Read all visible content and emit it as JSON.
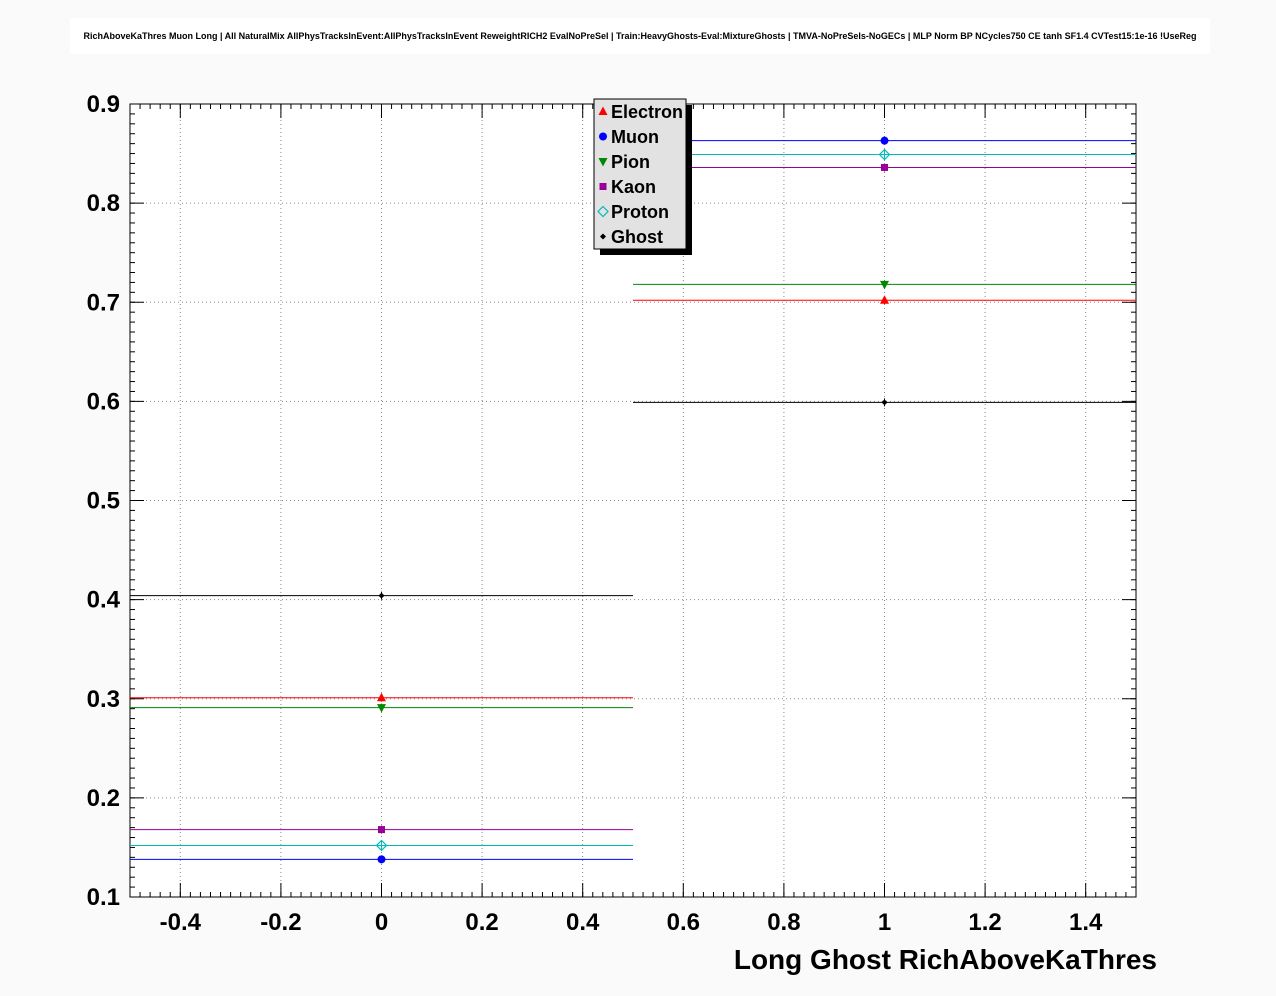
{
  "chart_data": {
    "type": "line",
    "title": "RichAboveKaThres Muon Long | All NaturalMix AllPhysTracksInEvent:AllPhysTracksInEvent ReweightRICH2 EvalNoPreSel | Train:HeavyGhosts-Eval:MixtureGhosts | TMVA-NoPreSels-NoGECs | MLP Norm BP NCycles750 CE tanh SF1.4 CVTest15:1e-16 !UseReg",
    "xlabel": "Long Ghost RichAboveKaThres",
    "ylabel": "",
    "xlim": [
      -0.5,
      1.5
    ],
    "ylim": [
      0.1,
      0.9
    ],
    "xticks": [
      -0.4,
      -0.2,
      0,
      0.2,
      0.4,
      0.6,
      0.8,
      1,
      1.2,
      1.4
    ],
    "xtick_labels": [
      "-0.4",
      "-0.2",
      "0",
      "0.2",
      "0.4",
      "0.6",
      "0.8",
      "1",
      "1.2",
      "1.4"
    ],
    "yticks": [
      0.1,
      0.2,
      0.3,
      0.4,
      0.5,
      0.6,
      0.7,
      0.8,
      0.9
    ],
    "ytick_labels": [
      "0.1",
      "0.2",
      "0.3",
      "0.4",
      "0.5",
      "0.6",
      "0.7",
      "0.8",
      "0.9"
    ],
    "x_minor_step": 0.02,
    "y_minor_step": 0.01,
    "grid": true,
    "bin_edges": [
      -0.5,
      0.5,
      1.5
    ],
    "bin_centers": [
      0,
      1
    ],
    "legend": {
      "position": "top-center",
      "fill": "#e2e2e2",
      "border": "#000000"
    },
    "series": [
      {
        "name": "Electron",
        "color": "#ff0000",
        "marker": "triangle-up",
        "values": [
          0.301,
          0.702
        ]
      },
      {
        "name": "Muon",
        "color": "#0000ff",
        "marker": "circle",
        "values": [
          0.138,
          0.863
        ]
      },
      {
        "name": "Pion",
        "color": "#008800",
        "marker": "triangle-down",
        "values": [
          0.291,
          0.718
        ]
      },
      {
        "name": "Kaon",
        "color": "#990099",
        "marker": "square",
        "values": [
          0.168,
          0.836
        ]
      },
      {
        "name": "Proton",
        "color": "#00bbbb",
        "marker": "diamond-open",
        "values": [
          0.152,
          0.849
        ]
      },
      {
        "name": "Ghost",
        "color": "#000000",
        "marker": "diamond-small",
        "values": [
          0.404,
          0.599
        ]
      }
    ]
  }
}
